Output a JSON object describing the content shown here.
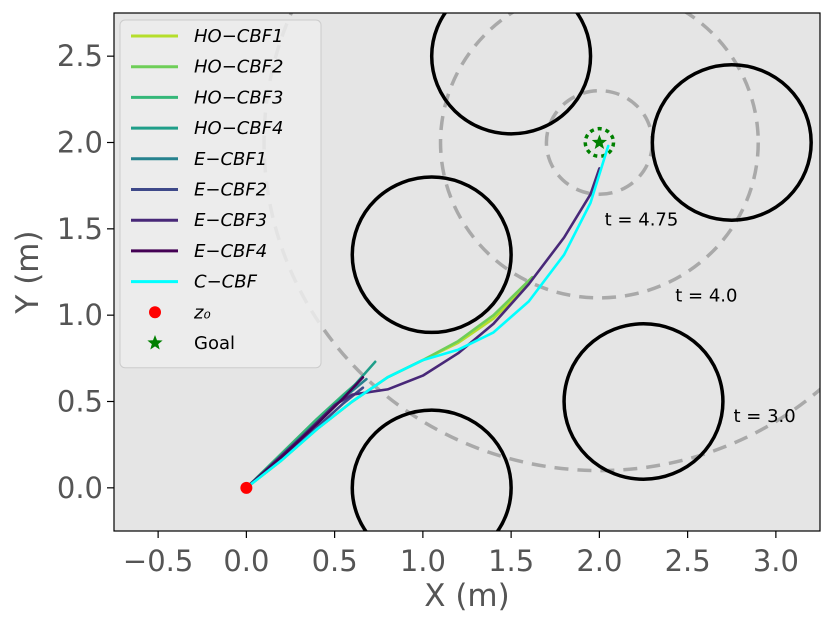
{
  "chart_data": {
    "type": "line",
    "title": "",
    "xlabel": "X (m)",
    "ylabel": "Y (m)",
    "xlim": [
      -0.75,
      3.25
    ],
    "ylim": [
      -0.25,
      2.75
    ],
    "xticks": [
      -0.5,
      0.0,
      0.5,
      1.0,
      1.5,
      2.0,
      2.5,
      3.0
    ],
    "xtick_labels": [
      "−0.5",
      "0.0",
      "0.5",
      "1.0",
      "1.5",
      "2.0",
      "2.5",
      "3.0"
    ],
    "yticks": [
      0.0,
      0.5,
      1.0,
      1.5,
      2.0,
      2.5
    ],
    "ytick_labels": [
      "0.0",
      "0.5",
      "1.0",
      "1.5",
      "2.0",
      "2.5"
    ],
    "grid": false,
    "legend_position": "top-left",
    "background": "#e5e5e5",
    "obstacles": [
      {
        "cx": 1.05,
        "cy": 1.35,
        "r": 0.45
      },
      {
        "cx": 1.5,
        "cy": 2.5,
        "r": 0.45
      },
      {
        "cx": 2.75,
        "cy": 2.0,
        "r": 0.45
      },
      {
        "cx": 2.25,
        "cy": 0.5,
        "r": 0.45
      },
      {
        "cx": 1.05,
        "cy": 0.0,
        "r": 0.45
      }
    ],
    "goal_circle": {
      "cx": 2.0,
      "cy": 2.0,
      "r": 0.05,
      "color": "#008000"
    },
    "reach_circles": [
      {
        "cx": 2.0,
        "cy": 2.0,
        "r": 0.3,
        "label": "t = 4.75",
        "label_x": 2.03,
        "label_y": 1.52
      },
      {
        "cx": 2.0,
        "cy": 2.0,
        "r": 0.9,
        "label": "t = 4.0",
        "label_x": 2.43,
        "label_y": 1.08
      },
      {
        "cx": 2.0,
        "cy": 2.0,
        "r": 1.9,
        "label": "t = 3.0",
        "label_x": 2.76,
        "label_y": 0.38
      }
    ],
    "series": [
      {
        "name": "HO−CBF1",
        "color": "#b5de2b",
        "x": [
          0.0,
          0.2,
          0.4,
          0.6,
          0.8,
          1.0,
          1.2,
          1.4,
          1.6
        ],
        "y": [
          0.0,
          0.16,
          0.34,
          0.5,
          0.64,
          0.74,
          0.84,
          0.98,
          1.18
        ]
      },
      {
        "name": "HO−CBF2",
        "color": "#6ece58",
        "x": [
          0.0,
          0.2,
          0.4,
          0.6,
          0.8,
          1.0,
          1.2,
          1.4,
          1.62
        ],
        "y": [
          0.0,
          0.16,
          0.34,
          0.5,
          0.64,
          0.74,
          0.85,
          1.0,
          1.22
        ]
      },
      {
        "name": "HO−CBF3",
        "color": "#35b779",
        "x": [
          0.0,
          0.2,
          0.4,
          0.55,
          0.64
        ],
        "y": [
          0.0,
          0.2,
          0.4,
          0.54,
          0.62
        ]
      },
      {
        "name": "HO−CBF4",
        "color": "#1f9e89",
        "x": [
          0.0,
          0.2,
          0.4,
          0.6,
          0.73
        ],
        "y": [
          0.0,
          0.18,
          0.38,
          0.58,
          0.73
        ]
      },
      {
        "name": "E−CBF1",
        "color": "#26828e",
        "x": [
          0.0,
          0.2,
          0.4,
          0.55,
          0.68
        ],
        "y": [
          0.0,
          0.19,
          0.38,
          0.52,
          0.63
        ]
      },
      {
        "name": "E−CBF2",
        "color": "#3e4989",
        "x": [
          0.0,
          0.2,
          0.4,
          0.55,
          0.66
        ],
        "y": [
          0.0,
          0.17,
          0.35,
          0.49,
          0.58
        ]
      },
      {
        "name": "E−CBF3",
        "color": "#482878",
        "x": [
          0.0,
          0.3,
          0.5,
          0.6,
          0.8,
          1.0,
          1.2,
          1.4,
          1.6,
          1.8,
          1.95,
          2.0
        ],
        "y": [
          0.0,
          0.28,
          0.48,
          0.54,
          0.57,
          0.65,
          0.78,
          0.95,
          1.18,
          1.45,
          1.7,
          1.85
        ]
      },
      {
        "name": "E−CBF4",
        "color": "#440154",
        "x": [
          0.0,
          0.2,
          0.4,
          0.55,
          0.66
        ],
        "y": [
          0.0,
          0.18,
          0.37,
          0.52,
          0.64
        ]
      },
      {
        "name": "C−CBF",
        "color": "#00ffff",
        "x": [
          0.0,
          0.2,
          0.4,
          0.6,
          0.8,
          1.0,
          1.2,
          1.4,
          1.6,
          1.8,
          1.95,
          2.05
        ],
        "y": [
          0.0,
          0.16,
          0.34,
          0.5,
          0.64,
          0.74,
          0.8,
          0.9,
          1.08,
          1.35,
          1.65,
          1.98
        ]
      }
    ],
    "markers": [
      {
        "name": "z₀",
        "symbol": "circle",
        "color": "#ff0000",
        "x": 0.0,
        "y": 0.0
      },
      {
        "name": "Goal",
        "symbol": "star",
        "color": "#008000",
        "x": 2.0,
        "y": 2.0
      }
    ]
  }
}
